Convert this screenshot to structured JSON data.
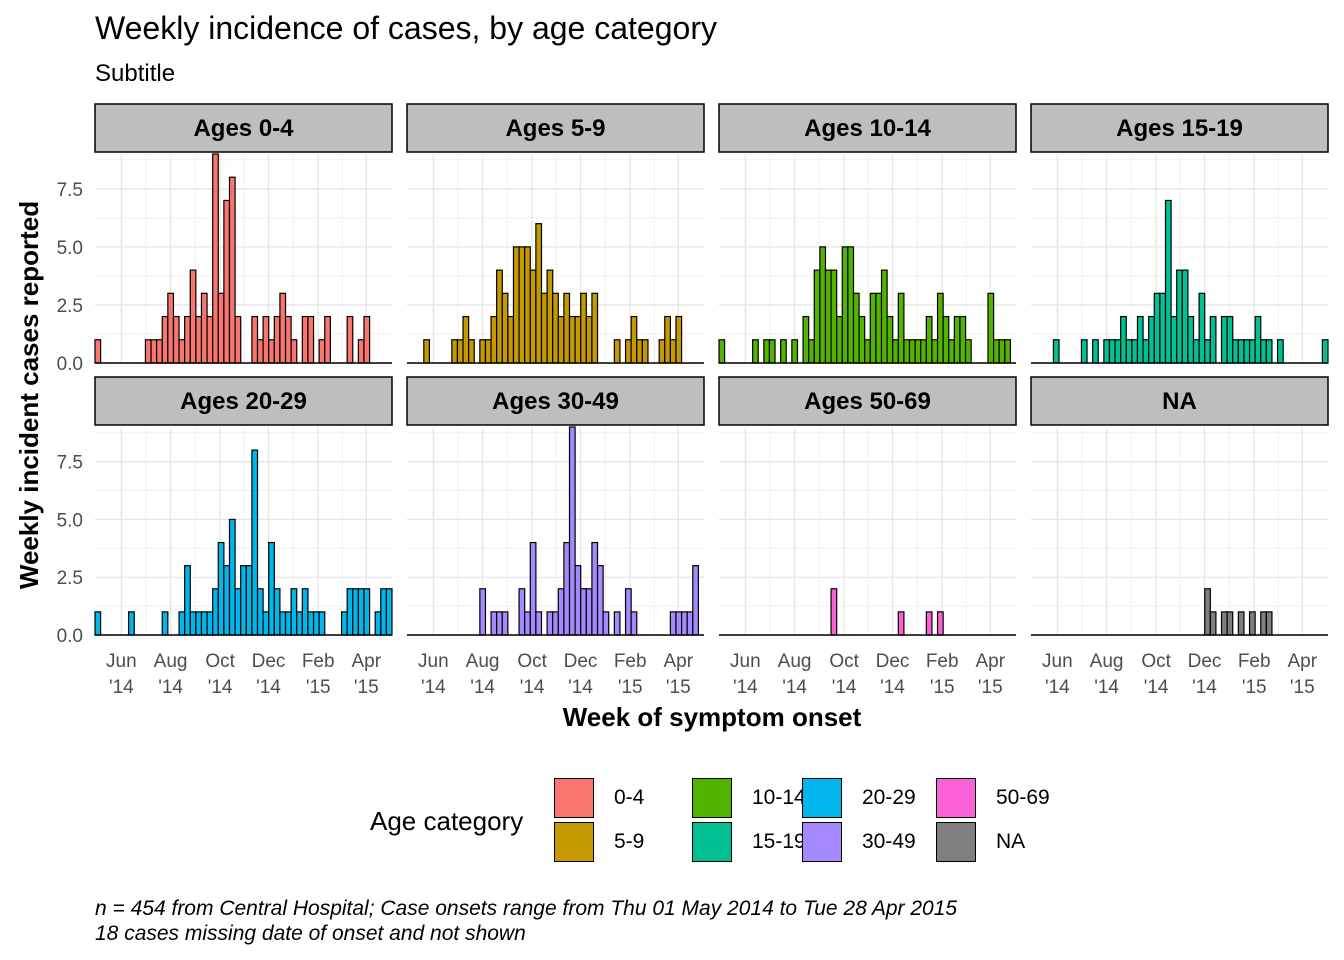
{
  "chart_data": {
    "type": "bar",
    "title": "Weekly incidence of cases, by age category",
    "subtitle": "Subtitle",
    "xlabel": "Week of symptom onset",
    "ylabel": "Weekly incident cases reported",
    "ylim": [
      0,
      9
    ],
    "y_ticks": [
      "0.0",
      "2.5",
      "5.0",
      "7.5"
    ],
    "x_ticks": [
      "Jun\n'14",
      "Aug\n'14",
      "Oct\n'14",
      "Dec\n'14",
      "Feb\n'15",
      "Apr\n'15"
    ],
    "legend": {
      "title": "Age category",
      "position": "bottom"
    },
    "caption_lines": [
      "n = 454 from Central Hospital; Case onsets range from Thu 01 May 2014 to Tue 28 Apr 2015",
      "18 cases missing date of onset and not shown"
    ],
    "panels": [
      {
        "strip": "Ages 0-4",
        "category": "0-4",
        "color": "#F8766D",
        "values": [
          1,
          0,
          0,
          0,
          0,
          0,
          0,
          0,
          0,
          1,
          1,
          1,
          2,
          3,
          2,
          1,
          2,
          4,
          2,
          3,
          2,
          9,
          3,
          7,
          8,
          2,
          0,
          0,
          2,
          1,
          2,
          1,
          2,
          3,
          2,
          1,
          0,
          2,
          2,
          0,
          1,
          2,
          0,
          0,
          0,
          2,
          0,
          1,
          2
        ]
      },
      {
        "strip": "Ages 5-9",
        "category": "5-9",
        "color": "#C49A00",
        "values": [
          0,
          0,
          0,
          1,
          0,
          0,
          0,
          0,
          1,
          1,
          2,
          1,
          0,
          1,
          1,
          2,
          4,
          3,
          2,
          5,
          5,
          5,
          4,
          6,
          3,
          4,
          3,
          2,
          3,
          2,
          2,
          3,
          2,
          3,
          0,
          0,
          0,
          1,
          0,
          1,
          2,
          1,
          1,
          0,
          0,
          1,
          2,
          1,
          2
        ]
      },
      {
        "strip": "Ages 10-14",
        "category": "10-14",
        "color": "#53B400",
        "values": [
          1,
          0,
          0,
          0,
          0,
          0,
          1,
          0,
          1,
          1,
          0,
          1,
          0,
          1,
          0,
          2,
          1,
          4,
          5,
          4,
          4,
          2,
          5,
          5,
          3,
          2,
          1,
          3,
          3,
          4,
          2,
          1,
          3,
          1,
          1,
          1,
          1,
          2,
          1,
          3,
          2,
          1,
          2,
          2,
          1,
          0,
          0,
          0,
          3,
          1,
          1,
          1
        ]
      },
      {
        "strip": "Ages 15-19",
        "category": "15-19",
        "color": "#00C094",
        "values": [
          0,
          0,
          0,
          0,
          1,
          0,
          0,
          0,
          0,
          1,
          0,
          1,
          0,
          1,
          1,
          1,
          2,
          1,
          1,
          2,
          1,
          2,
          3,
          3,
          7,
          2,
          4,
          4,
          2,
          1,
          3,
          1,
          2,
          0,
          2,
          2,
          1,
          1,
          1,
          1,
          2,
          1,
          1,
          0,
          1,
          0,
          0,
          0,
          0,
          0,
          0,
          0,
          1,
          1,
          1,
          1,
          0,
          0,
          0,
          0,
          1
        ]
      },
      {
        "strip": "Ages 20-29",
        "category": "20-29",
        "color": "#00B6EB",
        "values": [
          1,
          0,
          0,
          0,
          0,
          0,
          1,
          0,
          0,
          0,
          0,
          0,
          1,
          0,
          0,
          1,
          3,
          1,
          1,
          1,
          1,
          2,
          4,
          3,
          5,
          2,
          3,
          3,
          8,
          2,
          1,
          4,
          2,
          1,
          1,
          2,
          1,
          2,
          1,
          1,
          1,
          0,
          0,
          0,
          1,
          2,
          2,
          2,
          2,
          0,
          1,
          2,
          2,
          0,
          1,
          2
        ]
      },
      {
        "strip": "Ages 30-49",
        "category": "30-49",
        "color": "#A58AFF",
        "values": [
          0,
          0,
          0,
          0,
          0,
          0,
          0,
          0,
          0,
          0,
          0,
          0,
          0,
          2,
          0,
          1,
          1,
          1,
          0,
          0,
          2,
          1,
          4,
          1,
          0,
          1,
          1,
          2,
          4,
          9,
          3,
          2,
          2,
          4,
          3,
          1,
          0,
          1,
          0,
          2,
          1,
          0,
          0,
          0,
          0,
          0,
          0,
          1,
          1,
          1,
          1,
          3,
          0,
          0,
          0,
          0,
          0,
          1,
          0,
          0,
          0,
          0,
          0,
          0,
          0,
          1
        ]
      },
      {
        "strip": "Ages 50-69",
        "category": "50-69",
        "color": "#FB61D7",
        "values": [
          0,
          0,
          0,
          0,
          0,
          0,
          0,
          0,
          0,
          0,
          0,
          0,
          0,
          0,
          0,
          0,
          0,
          0,
          0,
          0,
          2,
          0,
          0,
          0,
          0,
          0,
          0,
          0,
          0,
          0,
          0,
          0,
          1,
          0,
          0,
          0,
          0,
          1,
          0,
          1
        ]
      },
      {
        "strip": "NA",
        "category": "NA",
        "color": "#7F7F7F",
        "values": [
          0,
          0,
          0,
          0,
          0,
          0,
          0,
          0,
          0,
          0,
          0,
          0,
          0,
          0,
          0,
          0,
          0,
          0,
          0,
          0,
          0,
          0,
          0,
          0,
          0,
          0,
          0,
          0,
          0,
          0,
          0,
          2,
          1,
          0,
          1,
          1,
          0,
          1,
          0,
          1,
          0,
          1,
          1
        ]
      }
    ]
  }
}
